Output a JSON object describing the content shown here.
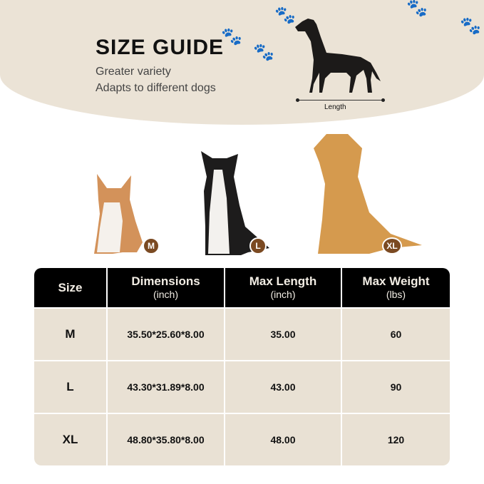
{
  "header": {
    "title": "SIZE GUIDE",
    "subtitle_1": "Greater variety",
    "subtitle_2": "Adapts to different dogs",
    "length_label": "Length"
  },
  "dogs": [
    {
      "breed_icon": "corgi",
      "size": "M"
    },
    {
      "breed_icon": "border-collie",
      "size": "L"
    },
    {
      "breed_icon": "golden-retriever",
      "size": "XL"
    }
  ],
  "colors": {
    "background": "#ebe3d6",
    "header_bg": "#000000",
    "cell_bg": "#e9e1d4",
    "badge": "#7b4a22"
  },
  "table": {
    "headers": [
      {
        "title": "Size",
        "unit": ""
      },
      {
        "title": "Dimensions",
        "unit": "(inch)"
      },
      {
        "title": "Max Length",
        "unit": "(inch)"
      },
      {
        "title": "Max Weight",
        "unit": "(lbs)"
      }
    ],
    "rows": [
      [
        "M",
        "35.50*25.60*8.00",
        "35.00",
        "60"
      ],
      [
        "L",
        "43.30*31.89*8.00",
        "43.00",
        "90"
      ],
      [
        "XL",
        "48.80*35.80*8.00",
        "48.00",
        "120"
      ]
    ]
  }
}
